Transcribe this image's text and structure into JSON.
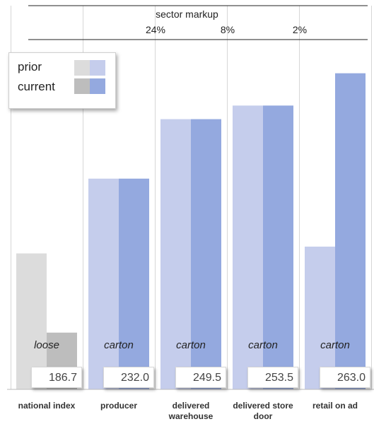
{
  "chart_data": {
    "type": "bar",
    "title": "sector markup",
    "categories": [
      "national index",
      "producer",
      "delivered warehouse",
      "delivered store door",
      "retail on ad"
    ],
    "series": [
      {
        "name": "prior",
        "values": [
          210,
          232.0,
          249.5,
          253.5,
          212
        ]
      },
      {
        "name": "current",
        "values": [
          186.7,
          232.0,
          249.5,
          253.5,
          263.0
        ]
      }
    ],
    "ylim": [
      170,
      270
    ],
    "value_labels": [
      "186.7",
      "232.0",
      "249.5",
      "253.5",
      "263.0"
    ],
    "markups": [
      "",
      "24%",
      "8%",
      "2%",
      ""
    ],
    "pack_labels": [
      "loose",
      "carton",
      "carton",
      "carton",
      "carton"
    ],
    "legend": {
      "placement": "top-left",
      "entries": [
        "prior",
        "current"
      ]
    },
    "colors": {
      "index_prior": "#dcdcdc",
      "index_current": "#bdbdbd",
      "prior": "#c5cdec",
      "current": "#94a9df",
      "divider": "#d6d6d6"
    }
  }
}
